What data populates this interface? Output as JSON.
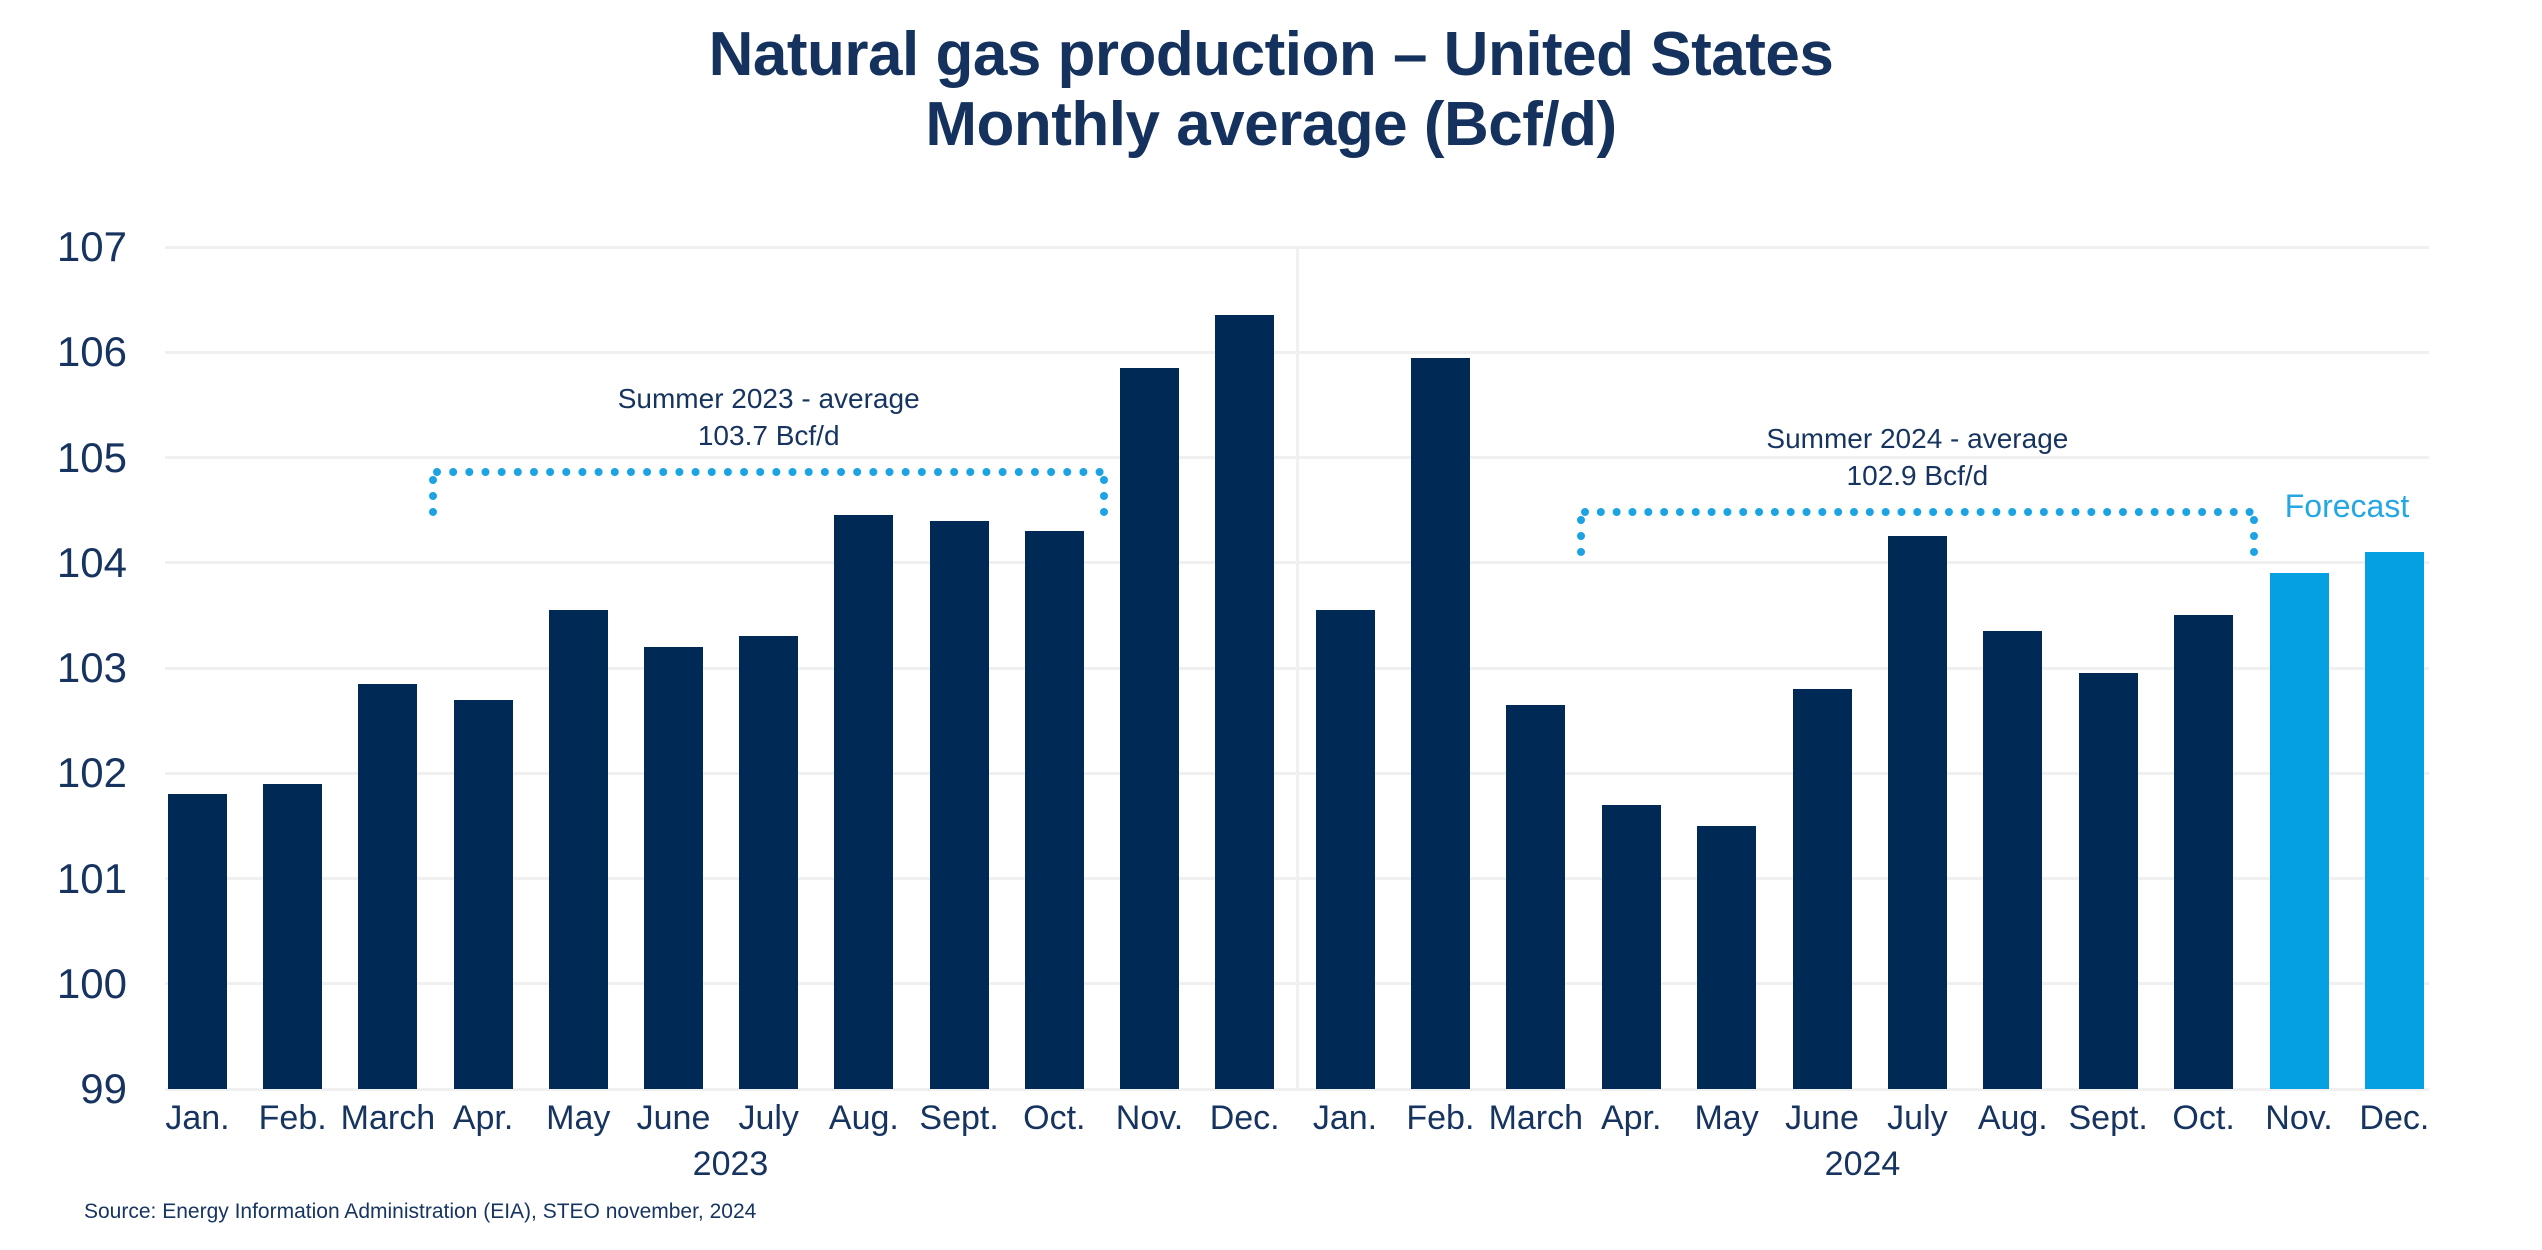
{
  "title": {
    "line1": "Natural gas production – United States",
    "line2": "Monthly average (Bcf/d)"
  },
  "chart_data": {
    "type": "bar",
    "unit": "Bcf/d",
    "ylim": [
      99,
      107
    ],
    "yticks": [
      99,
      100,
      101,
      102,
      103,
      104,
      105,
      106,
      107
    ],
    "grid": true,
    "groups": [
      {
        "year": "2023",
        "categories": [
          "Jan.",
          "Feb.",
          "March",
          "Apr.",
          "May",
          "June",
          "July",
          "Aug.",
          "Sept.",
          "Oct.",
          "Nov.",
          "Dec."
        ],
        "values": [
          101.8,
          101.9,
          102.85,
          102.7,
          103.55,
          103.2,
          103.3,
          104.45,
          104.4,
          104.3,
          105.85,
          106.35
        ],
        "forecast": [
          false,
          false,
          false,
          false,
          false,
          false,
          false,
          false,
          false,
          false,
          false,
          false
        ]
      },
      {
        "year": "2024",
        "categories": [
          "Jan.",
          "Feb.",
          "March",
          "Apr.",
          "May",
          "June",
          "July",
          "Aug.",
          "Sept.",
          "Oct.",
          "Nov.",
          "Dec."
        ],
        "values": [
          103.55,
          105.95,
          102.65,
          101.7,
          101.5,
          102.8,
          104.25,
          103.35,
          102.95,
          103.5,
          103.9,
          104.1
        ],
        "forecast": [
          false,
          false,
          false,
          false,
          false,
          false,
          false,
          false,
          false,
          false,
          true,
          true
        ]
      }
    ],
    "annotations": [
      {
        "label": "Summer 2023 - average",
        "value_label": "103.7 Bcf/d",
        "line_level": 104.86,
        "group": 0,
        "from_month": 3,
        "to_month": 9
      },
      {
        "label": "Summer 2024 - average",
        "value_label": "102.9 Bcf/d",
        "line_level": 104.48,
        "group": 1,
        "from_month": 3,
        "to_month": 9
      }
    ],
    "forecast_label": "Forecast"
  },
  "source": "Source: Energy Information Administration (EIA), STEO november, 2024",
  "colors": {
    "bar_actual": "#002a55",
    "bar_forecast": "#04a0e2",
    "dotted_line": "#1ca3e3",
    "text_navy": "#16345f",
    "title_navy": "#14325d",
    "gridline": "#f0f0f0",
    "forecast_text": "#25a7e4",
    "background": "#ffffff"
  }
}
